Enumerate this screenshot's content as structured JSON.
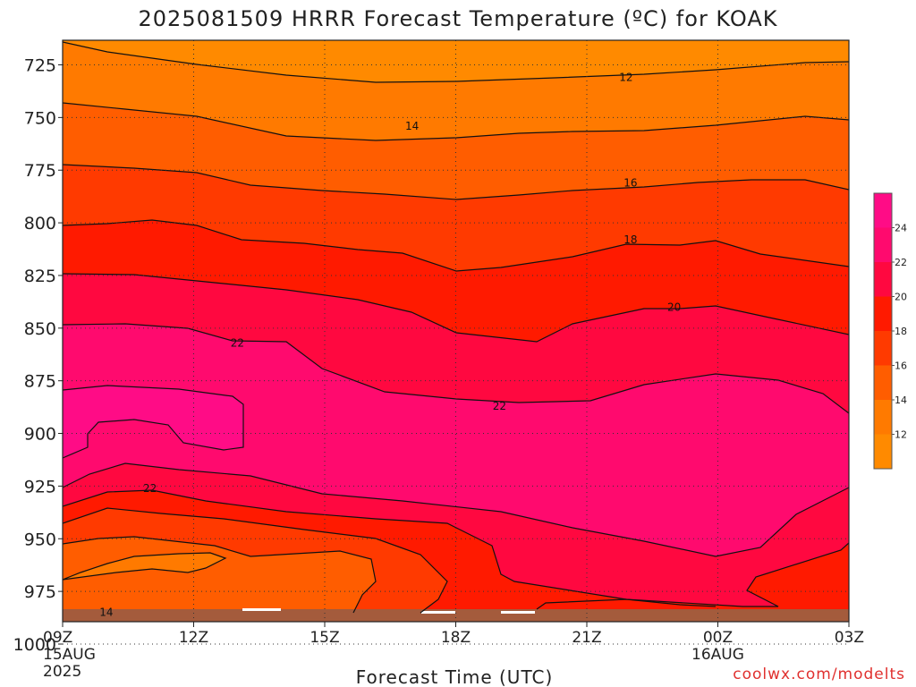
{
  "chart_data": {
    "type": "heatmap",
    "title": "2025081509 HRRR Forecast Temperature (ºC) for KOAK",
    "xlabel": "Forecast Time (UTC)",
    "ylabel": "",
    "y_scale": "pressure (hPa), top = low pressure",
    "ylim": [
      1015,
      710
    ],
    "y_ticks": [
      725,
      750,
      775,
      800,
      825,
      850,
      875,
      900,
      925,
      950,
      975,
      1000
    ],
    "x_ticks": [
      {
        "label": "09Z",
        "sub1": "15AUG",
        "sub2": "2025"
      },
      {
        "label": "12Z",
        "sub1": "",
        "sub2": ""
      },
      {
        "label": "15Z",
        "sub1": "",
        "sub2": ""
      },
      {
        "label": "18Z",
        "sub1": "",
        "sub2": ""
      },
      {
        "label": "21Z",
        "sub1": "",
        "sub2": ""
      },
      {
        "label": "00Z",
        "sub1": "16AUG",
        "sub2": ""
      },
      {
        "label": "03Z",
        "sub1": "",
        "sub2": ""
      }
    ],
    "grid": true,
    "contour_labels": [
      {
        "text": "12",
        "hour": 12.9,
        "p": 731
      },
      {
        "text": "14",
        "hour": 8.0,
        "p": 754
      },
      {
        "text": "16",
        "hour": 13.0,
        "p": 781
      },
      {
        "text": "18",
        "hour": 13.0,
        "p": 808
      },
      {
        "text": "20",
        "hour": 14.0,
        "p": 840
      },
      {
        "text": "22",
        "hour": 4.0,
        "p": 857
      },
      {
        "text": "22",
        "hour": 10.0,
        "p": 887
      },
      {
        "text": "22",
        "hour": 2.0,
        "p": 926
      },
      {
        "text": "14",
        "hour": 1.0,
        "p": 985
      }
    ],
    "colorbar": {
      "levels": [
        12,
        14,
        16,
        18,
        20,
        22,
        24
      ],
      "colors": [
        "#ff8a00",
        "#ff7a00",
        "#ff5d00",
        "#ff3a00",
        "#ff1a00",
        "#ff0840",
        "#ff0a6e",
        "#ff0c86"
      ]
    },
    "credit": "coolwx.com/modelts"
  }
}
